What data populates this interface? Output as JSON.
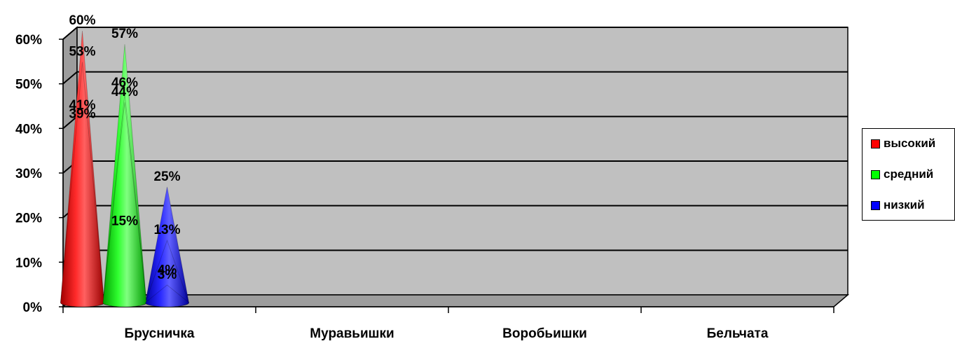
{
  "chart_data": {
    "type": "bar",
    "title": "",
    "xlabel": "",
    "ylabel": "",
    "ylim": [
      0,
      60
    ],
    "y_ticks": [
      "0%",
      "10%",
      "20%",
      "30%",
      "40%",
      "50%",
      "60%"
    ],
    "categories": [
      "Брусничка",
      "Муравьишки",
      "Воробьишки",
      "Бельчата"
    ],
    "series": [
      {
        "name": "высокий",
        "color": "#ff0000",
        "values": [
          60,
          39,
          41,
          53
        ],
        "labels": [
          "60%",
          "39%",
          "41%",
          "53%"
        ]
      },
      {
        "name": "средний",
        "color": "#00ff00",
        "values": [
          15,
          57,
          46,
          44
        ],
        "labels": [
          "15%",
          "57%",
          "46%",
          "44%"
        ]
      },
      {
        "name": "низкий",
        "color": "#0000ff",
        "values": [
          25,
          4,
          13,
          3
        ],
        "labels": [
          "25%",
          "4%",
          "13%",
          "3%"
        ]
      }
    ],
    "grid": true,
    "legend_position": "right",
    "mark_shape": "cone-3d"
  }
}
